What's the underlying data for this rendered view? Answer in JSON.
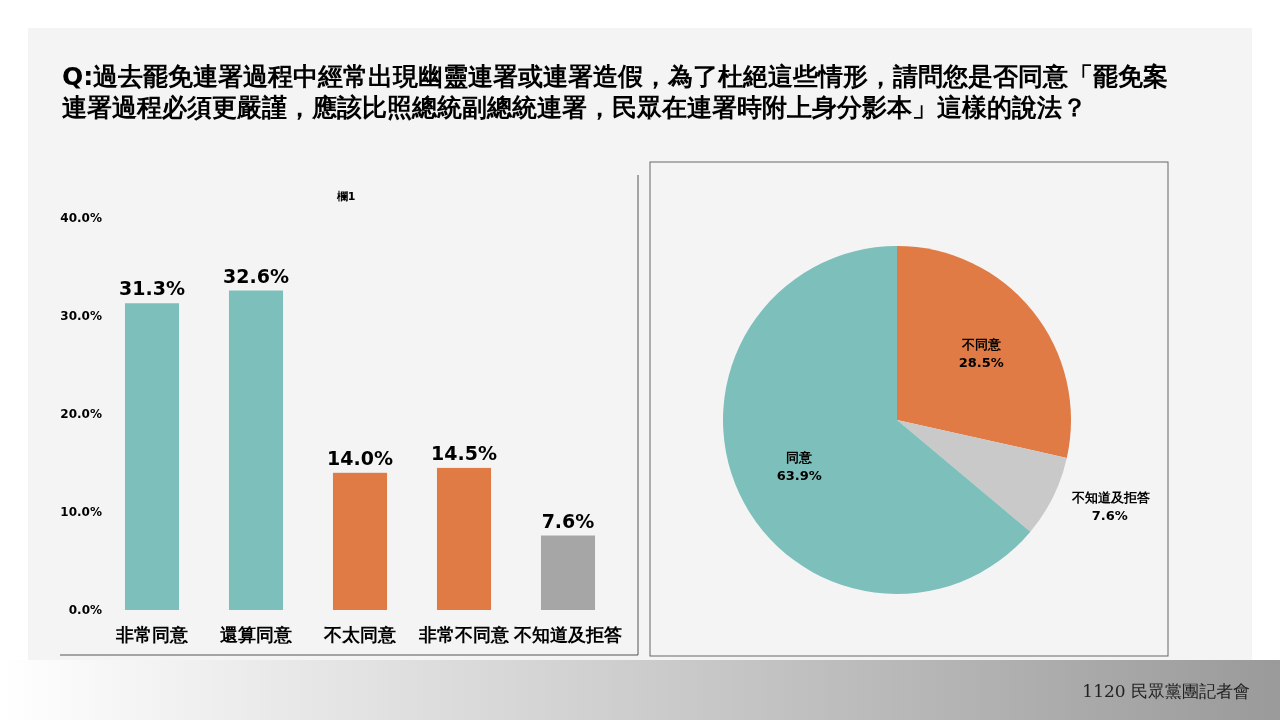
{
  "chart_data": [
    {
      "type": "bar",
      "title": "Q:過去罷免連署過程中經常出現幽靈連署或連署造假，為了杜絕這些情形，請問您是否同意「罷免案連署過程必須更嚴謹，應該比照總統副總統連署，民眾在連署時附上身分影本」這樣的說法？",
      "subtitle": "欄1",
      "categories": [
        "非常同意",
        "還算同意",
        "不太同意",
        "非常不同意",
        "不知道及拒答"
      ],
      "values": [
        31.3,
        32.6,
        14.0,
        14.5,
        7.6
      ],
      "colors": [
        "#7dbfba",
        "#7dbfba",
        "#e07b45",
        "#e07b45",
        "#a6a6a6"
      ],
      "value_labels": [
        "31.3%",
        "32.6%",
        "14.0%",
        "14.5%",
        "7.6%"
      ],
      "ylim": [
        0,
        40
      ],
      "yticks": [
        {
          "value": 0,
          "label": "0.0%"
        },
        {
          "value": 10,
          "label": "10.0%"
        },
        {
          "value": 20,
          "label": "20.0%"
        },
        {
          "value": 30,
          "label": "30.0%"
        },
        {
          "value": 40,
          "label": "40.0%"
        }
      ],
      "grid": false
    },
    {
      "type": "pie",
      "categories": [
        "不同意",
        "不知道及拒答",
        "同意"
      ],
      "values": [
        28.5,
        7.6,
        63.9
      ],
      "colors": [
        "#e07b45",
        "#c9c9c9",
        "#7dbfba"
      ],
      "value_labels": [
        "28.5%",
        "7.6%",
        "63.9%"
      ],
      "annotations": [
        "1120 民眾黨團記者會"
      ]
    }
  ]
}
